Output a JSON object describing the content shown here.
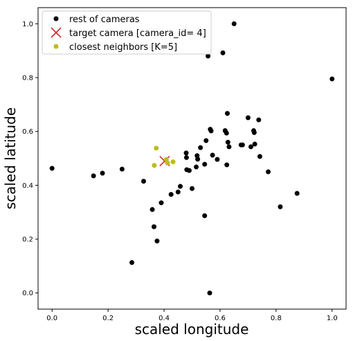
{
  "chart_data": {
    "type": "scatter",
    "title": "",
    "xlabel": "scaled longitude",
    "ylabel": "scaled latitude",
    "xlim": [
      -0.05,
      1.05
    ],
    "ylim": [
      -0.06,
      1.06
    ],
    "xticks": [
      0.0,
      0.2,
      0.4,
      0.6,
      0.8,
      1.0
    ],
    "xtick_labels": [
      "0.0",
      "0.2",
      "0.4",
      "0.6",
      "0.8",
      "1.0"
    ],
    "yticks": [
      0.0,
      0.2,
      0.4,
      0.6,
      0.8,
      1.0
    ],
    "ytick_labels": [
      "0.0",
      "0.2",
      "0.4",
      "0.6",
      "0.8",
      "1.0"
    ],
    "grid": false,
    "legend_position": "top-left",
    "series": [
      {
        "name": "rest of cameras",
        "marker": "circle",
        "color": "#000000",
        "points": [
          [
            0.0,
            0.463
          ],
          [
            0.148,
            0.435
          ],
          [
            0.18,
            0.445
          ],
          [
            0.25,
            0.46
          ],
          [
            0.285,
            0.113
          ],
          [
            0.327,
            0.415
          ],
          [
            0.358,
            0.31
          ],
          [
            0.364,
            0.246
          ],
          [
            0.375,
            0.193
          ],
          [
            0.39,
            0.335
          ],
          [
            0.425,
            0.366
          ],
          [
            0.45,
            0.375
          ],
          [
            0.458,
            0.396
          ],
          [
            0.479,
            0.52
          ],
          [
            0.48,
            0.503
          ],
          [
            0.481,
            0.458
          ],
          [
            0.49,
            0.455
          ],
          [
            0.5,
            0.388
          ],
          [
            0.515,
            0.468
          ],
          [
            0.518,
            0.51
          ],
          [
            0.52,
            0.497
          ],
          [
            0.53,
            0.54
          ],
          [
            0.545,
            0.287
          ],
          [
            0.545,
            0.478
          ],
          [
            0.55,
            0.566
          ],
          [
            0.557,
            0.88
          ],
          [
            0.563,
            0.0
          ],
          [
            0.565,
            0.608
          ],
          [
            0.568,
            0.602
          ],
          [
            0.573,
            0.512
          ],
          [
            0.59,
            0.496
          ],
          [
            0.61,
            0.892
          ],
          [
            0.618,
            0.603
          ],
          [
            0.623,
            0.594
          ],
          [
            0.624,
            0.476
          ],
          [
            0.626,
            0.667
          ],
          [
            0.628,
            0.56
          ],
          [
            0.632,
            0.543
          ],
          [
            0.65,
            1.0
          ],
          [
            0.675,
            0.55
          ],
          [
            0.68,
            0.55
          ],
          [
            0.7,
            0.651
          ],
          [
            0.71,
            0.543
          ],
          [
            0.72,
            0.603
          ],
          [
            0.722,
            0.596
          ],
          [
            0.724,
            0.553
          ],
          [
            0.738,
            0.643
          ],
          [
            0.742,
            0.507
          ],
          [
            0.772,
            0.45
          ],
          [
            0.815,
            0.32
          ],
          [
            0.875,
            0.37
          ],
          [
            1.0,
            0.795
          ]
        ]
      },
      {
        "name": "target camera [camera_id= 4]",
        "marker": "x",
        "color": "#d62728",
        "points": [
          [
            0.402,
            0.49
          ]
        ]
      },
      {
        "name": "closest neighbors [K=5]",
        "marker": "circle",
        "color": "#bcbd22",
        "points": [
          [
            0.372,
            0.538
          ],
          [
            0.365,
            0.474
          ],
          [
            0.408,
            0.496
          ],
          [
            0.412,
            0.483
          ],
          [
            0.432,
            0.487
          ]
        ]
      }
    ]
  }
}
